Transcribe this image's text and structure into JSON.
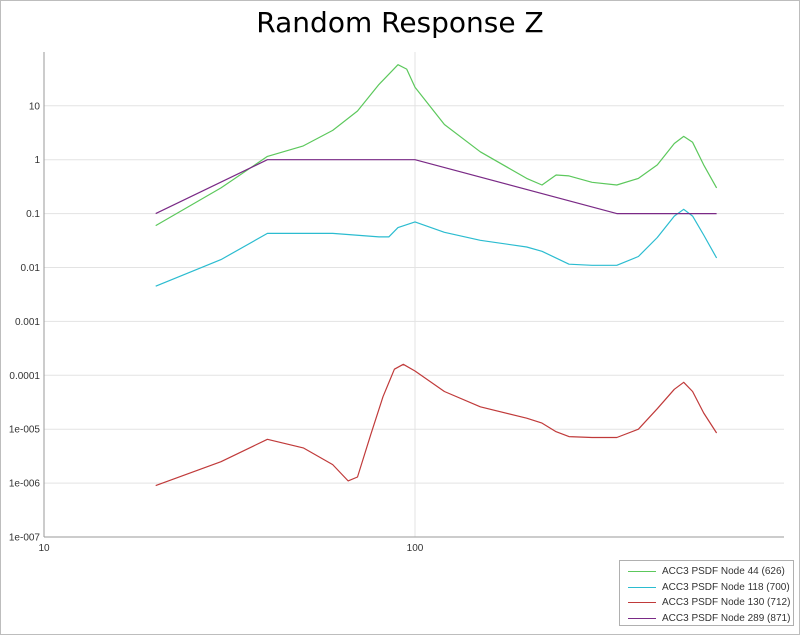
{
  "chart_data": {
    "type": "line",
    "title": "Random Response Z",
    "xlabel": "",
    "ylabel": "",
    "x_scale": "log",
    "y_scale": "log",
    "xlim": [
      10,
      2000
    ],
    "ylim": [
      1e-07,
      100
    ],
    "x_ticks": [
      "10",
      "100"
    ],
    "y_ticks": [
      "1e-007",
      "1e-006",
      "1e-005",
      "0.0001",
      "0.001",
      "0.01",
      "0.1",
      "1",
      "10"
    ],
    "grid": true,
    "legend_position": "bottom-right",
    "series": [
      {
        "name": "ACC3 PSDF Node 44 (626)",
        "color": "#5cc85c",
        "points": [
          [
            20,
            0.06
          ],
          [
            30,
            0.3
          ],
          [
            40,
            1.15
          ],
          [
            50,
            1.8
          ],
          [
            60,
            3.5
          ],
          [
            70,
            8
          ],
          [
            80,
            25
          ],
          [
            90,
            58
          ],
          [
            95,
            48
          ],
          [
            100,
            22
          ],
          [
            120,
            4.5
          ],
          [
            150,
            1.4
          ],
          [
            200,
            0.45
          ],
          [
            220,
            0.34
          ],
          [
            240,
            0.52
          ],
          [
            260,
            0.5
          ],
          [
            300,
            0.38
          ],
          [
            350,
            0.34
          ],
          [
            400,
            0.45
          ],
          [
            450,
            0.8
          ],
          [
            500,
            2.0
          ],
          [
            530,
            2.7
          ],
          [
            560,
            2.1
          ],
          [
            600,
            0.8
          ],
          [
            650,
            0.3
          ]
        ]
      },
      {
        "name": "ACC3 PSDF Node 118 (700)",
        "color": "#2bbcd0",
        "points": [
          [
            20,
            0.0045
          ],
          [
            30,
            0.014
          ],
          [
            40,
            0.043
          ],
          [
            60,
            0.043
          ],
          [
            80,
            0.037
          ],
          [
            85,
            0.037
          ],
          [
            90,
            0.055
          ],
          [
            100,
            0.07
          ],
          [
            120,
            0.045
          ],
          [
            150,
            0.032
          ],
          [
            200,
            0.024
          ],
          [
            220,
            0.02
          ],
          [
            260,
            0.0115
          ],
          [
            300,
            0.011
          ],
          [
            350,
            0.011
          ],
          [
            400,
            0.016
          ],
          [
            450,
            0.036
          ],
          [
            500,
            0.09
          ],
          [
            530,
            0.12
          ],
          [
            560,
            0.09
          ],
          [
            600,
            0.04
          ],
          [
            650,
            0.015
          ]
        ]
      },
      {
        "name": "ACC3 PSDF Node 130 (712)",
        "color": "#c03a3a",
        "points": [
          [
            20,
            9e-07
          ],
          [
            30,
            2.5e-06
          ],
          [
            40,
            6.5e-06
          ],
          [
            50,
            4.5e-06
          ],
          [
            60,
            2.2e-06
          ],
          [
            66,
            1.1e-06
          ],
          [
            70,
            1.3e-06
          ],
          [
            76,
            8e-06
          ],
          [
            82,
            4e-05
          ],
          [
            88,
            0.00013
          ],
          [
            93,
            0.00016
          ],
          [
            100,
            0.00012
          ],
          [
            120,
            5e-05
          ],
          [
            150,
            2.6e-05
          ],
          [
            200,
            1.6e-05
          ],
          [
            220,
            1.3e-05
          ],
          [
            240,
            9e-06
          ],
          [
            260,
            7.3e-06
          ],
          [
            300,
            7e-06
          ],
          [
            350,
            7e-06
          ],
          [
            400,
            1e-05
          ],
          [
            450,
            2.4e-05
          ],
          [
            500,
            5.5e-05
          ],
          [
            530,
            7.4e-05
          ],
          [
            560,
            5e-05
          ],
          [
            600,
            2e-05
          ],
          [
            650,
            8.5e-06
          ]
        ]
      },
      {
        "name": "ACC3 PSDF Node 289 (871)",
        "color": "#7a2a86",
        "points": [
          [
            20,
            0.1
          ],
          [
            40,
            1.0
          ],
          [
            100,
            1.0
          ],
          [
            350,
            0.1
          ],
          [
            650,
            0.1
          ]
        ]
      }
    ]
  }
}
